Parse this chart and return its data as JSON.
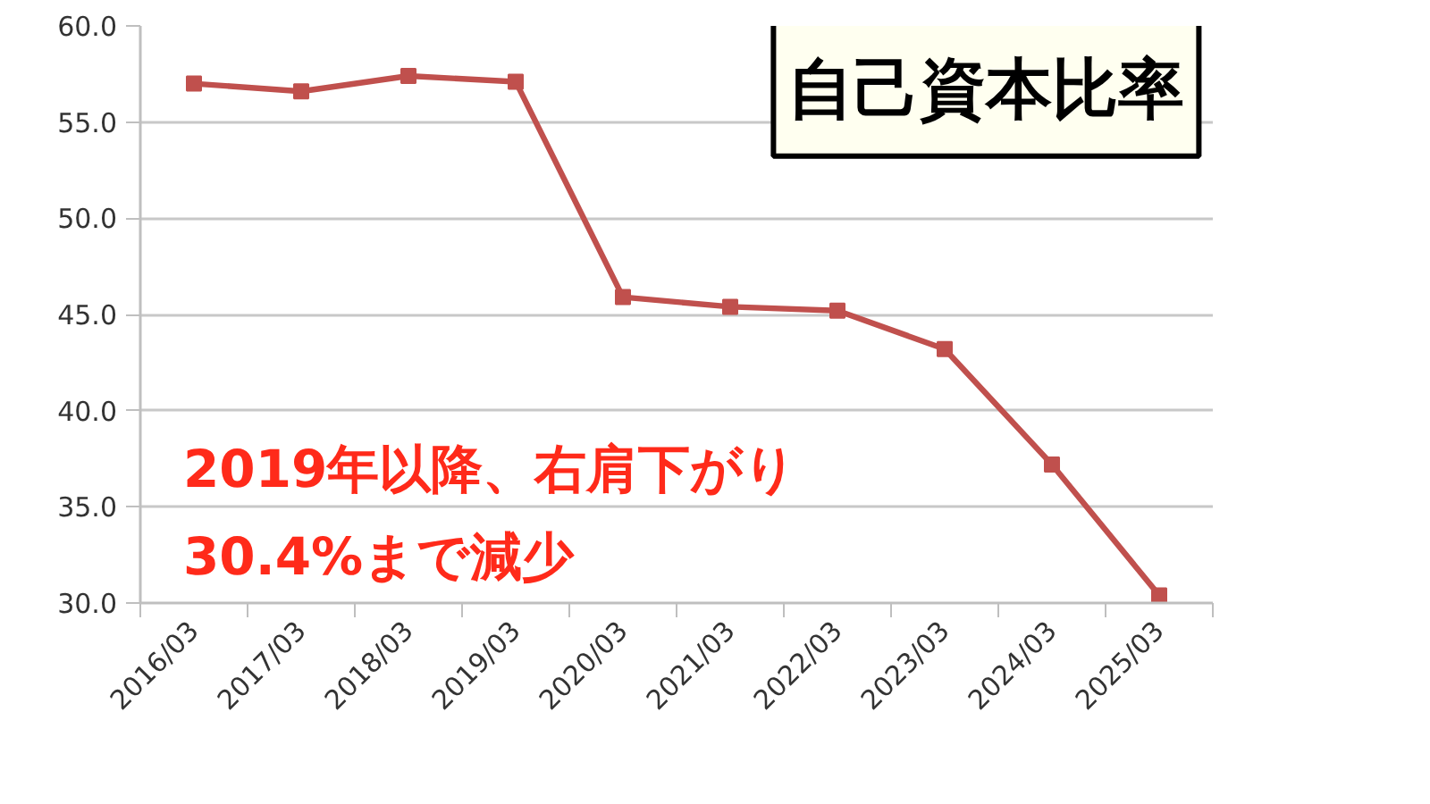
{
  "chart_data": {
    "type": "line",
    "title": "自己資本比率",
    "categories": [
      "2016/03",
      "2017/03",
      "2018/03",
      "2019/03",
      "2020/03",
      "2021/03",
      "2022/03",
      "2023/03",
      "2024/03",
      "2025/03"
    ],
    "series": [
      {
        "color": "#c0504d",
        "values": [
          57.0,
          56.6,
          57.4,
          57.1,
          45.9,
          45.4,
          45.2,
          43.2,
          37.2,
          30.4
        ]
      }
    ],
    "ylim": [
      30,
      60
    ],
    "yticks": [
      {
        "value": 30,
        "label": "30.0"
      },
      {
        "value": 35,
        "label": "35.0"
      },
      {
        "value": 40,
        "label": "40.0"
      },
      {
        "value": 45,
        "label": "45.0"
      },
      {
        "value": 50,
        "label": "50.0"
      },
      {
        "value": 55,
        "label": "55.0"
      },
      {
        "value": 60,
        "label": "60.0"
      }
    ],
    "grid": "y",
    "marker": "square",
    "line_style": "solid",
    "annotations": [
      "2019年以降、右肩下がり\n30.4%まで減少"
    ]
  }
}
